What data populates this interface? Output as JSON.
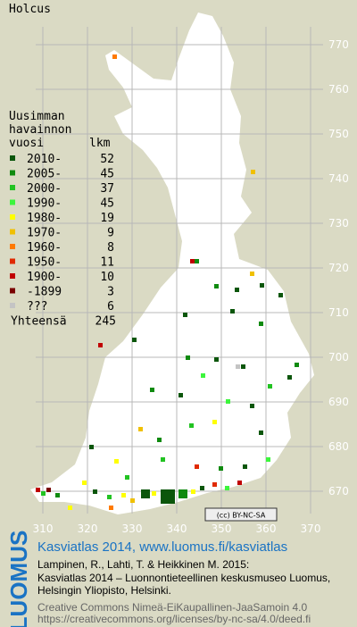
{
  "title": "Holcus",
  "legend": {
    "header": [
      "Uusimman",
      "havainnon",
      "vuosi"
    ],
    "count_header": "lkm",
    "entries": [
      {
        "label": "2010-",
        "count": 52,
        "color": "#0b560b"
      },
      {
        "label": "2005-",
        "count": 45,
        "color": "#0f8a0f"
      },
      {
        "label": "2000-",
        "count": 37,
        "color": "#22c322"
      },
      {
        "label": "1990-",
        "count": 45,
        "color": "#3cf53c"
      },
      {
        "label": "1980-",
        "count": 19,
        "color": "#ffff00"
      },
      {
        "label": "1970-",
        "count": 9,
        "color": "#f0c000"
      },
      {
        "label": "1960-",
        "count": 8,
        "color": "#ff7a00"
      },
      {
        "label": "1950-",
        "count": 11,
        "color": "#e02a00"
      },
      {
        "label": "1900-",
        "count": 10,
        "color": "#c00000"
      },
      {
        "label": "-1899",
        "count": 3,
        "color": "#7a0000"
      },
      {
        "label": "???",
        "count": 6,
        "color": "#c4c4c4"
      }
    ],
    "total_label": "Yhteensä",
    "total": 245
  },
  "grid_x": [
    310,
    320,
    330,
    340,
    350,
    360,
    370
  ],
  "grid_y": [
    770,
    760,
    750,
    740,
    730,
    720,
    710,
    700,
    690,
    680,
    670
  ],
  "license_badge": "(cc) BY-NC-SA",
  "logo": "LUOMUS",
  "footer": {
    "heading": "Kasviatlas 2014, www.luomus.fi/kasviatlas",
    "citation": [
      "Lampinen, R., Lahti, T. & Heikkinen M. 2015:",
      "Kasviatlas 2014 – Luonnontieteellinen keskusmuseo Luomus,",
      "Helsingin Yliopisto, Helsinki."
    ],
    "license": [
      "Creative Commons Nimeä-EiKaupallinen-JaaSamoin 4.0",
      "https://creativecommons.org/licenses/by-nc-sa/4.0/deed.fi"
    ]
  }
}
